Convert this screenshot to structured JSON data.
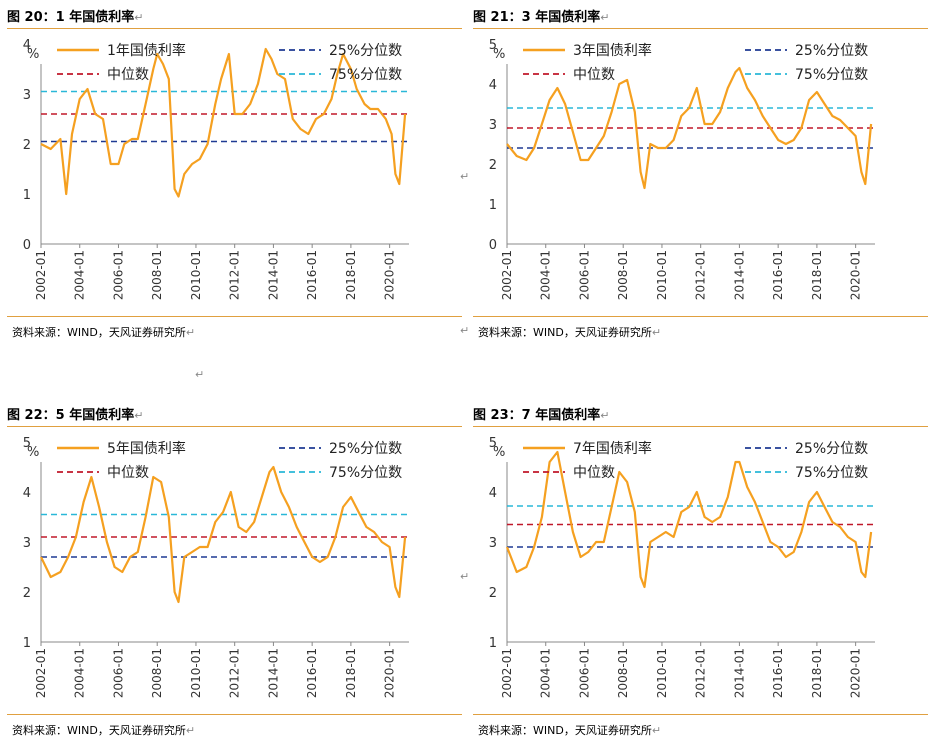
{
  "panels": [
    {
      "title": "图 20：1 年国债利率",
      "source": "资料来源：WIND，天风证券研究所"
    },
    {
      "title": "图 21：3 年国债利率",
      "source": "资料来源：WIND，天风证券研究所"
    },
    {
      "title": "图 22：5 年国债利率",
      "source": "资料来源：WIND，天风证券研究所"
    },
    {
      "title": "图 23：7 年国债利率",
      "source": "资料来源：WIND，天风证券研究所"
    }
  ],
  "colors": {
    "series": "#f5a020",
    "p25": "#1f3a93",
    "median": "#c0182a",
    "p75": "#2ab8d8",
    "rule": "#e0a040"
  },
  "chart_data": [
    {
      "type": "line",
      "ylabel": "%",
      "ylim": [
        0,
        4
      ],
      "yticks": [
        "0",
        "1",
        "2",
        "3",
        "4"
      ],
      "x_tick_labels": [
        "2002-01",
        "2004-01",
        "2006-01",
        "2008-01",
        "2010-01",
        "2012-01",
        "2014-01",
        "2016-01",
        "2018-01",
        "2020-01"
      ],
      "legend": [
        "1年国债利率",
        "25%分位数",
        "中位数",
        "75%分位数"
      ],
      "series": [
        {
          "name": "1年国债利率",
          "x": [
            2002.0,
            2002.5,
            2003.0,
            2003.3,
            2003.6,
            2004.0,
            2004.4,
            2004.8,
            2005.2,
            2005.6,
            2006.0,
            2006.3,
            2006.7,
            2007.0,
            2007.4,
            2007.8,
            2008.0,
            2008.3,
            2008.6,
            2008.9,
            2009.1,
            2009.4,
            2009.8,
            2010.2,
            2010.6,
            2011.0,
            2011.3,
            2011.7,
            2012.0,
            2012.4,
            2012.8,
            2013.2,
            2013.6,
            2013.9,
            2014.2,
            2014.6,
            2015.0,
            2015.4,
            2015.8,
            2016.2,
            2016.6,
            2017.0,
            2017.3,
            2017.6,
            2018.0,
            2018.3,
            2018.7,
            2019.0,
            2019.4,
            2019.8,
            2020.1,
            2020.3,
            2020.5,
            2020.8
          ],
          "y": [
            2.0,
            1.9,
            2.1,
            1.0,
            2.2,
            2.9,
            3.1,
            2.6,
            2.5,
            1.6,
            1.6,
            2.0,
            2.1,
            2.1,
            2.8,
            3.5,
            3.8,
            3.6,
            3.3,
            1.1,
            0.95,
            1.4,
            1.6,
            1.7,
            2.0,
            2.8,
            3.3,
            3.8,
            2.6,
            2.6,
            2.8,
            3.2,
            3.9,
            3.7,
            3.4,
            3.3,
            2.5,
            2.3,
            2.2,
            2.5,
            2.6,
            2.9,
            3.4,
            3.8,
            3.5,
            3.1,
            2.8,
            2.7,
            2.7,
            2.5,
            2.2,
            1.4,
            1.2,
            2.6
          ]
        }
      ],
      "p25": 2.05,
      "median": 2.6,
      "p75": 3.05
    },
    {
      "type": "line",
      "ylabel": "%",
      "ylim": [
        0,
        5
      ],
      "yticks": [
        "0",
        "1",
        "2",
        "3",
        "4",
        "5"
      ],
      "x_tick_labels": [
        "2002-01",
        "2004-01",
        "2006-01",
        "2008-01",
        "2010-01",
        "2012-01",
        "2014-01",
        "2016-01",
        "2018-01",
        "2020-01"
      ],
      "legend": [
        "3年国债利率",
        "25%分位数",
        "中位数",
        "75%分位数"
      ],
      "series": [
        {
          "name": "3年国债利率",
          "x": [
            2002.0,
            2002.5,
            2003.0,
            2003.4,
            2003.8,
            2004.2,
            2004.6,
            2005.0,
            2005.4,
            2005.8,
            2006.2,
            2006.6,
            2007.0,
            2007.4,
            2007.8,
            2008.2,
            2008.6,
            2008.9,
            2009.1,
            2009.4,
            2009.8,
            2010.2,
            2010.6,
            2011.0,
            2011.4,
            2011.8,
            2012.2,
            2012.6,
            2013.0,
            2013.4,
            2013.8,
            2014.0,
            2014.4,
            2014.8,
            2015.2,
            2015.6,
            2016.0,
            2016.4,
            2016.8,
            2017.2,
            2017.6,
            2018.0,
            2018.4,
            2018.8,
            2019.2,
            2019.6,
            2020.0,
            2020.3,
            2020.5,
            2020.8
          ],
          "y": [
            2.5,
            2.2,
            2.1,
            2.4,
            3.0,
            3.6,
            3.9,
            3.5,
            2.8,
            2.1,
            2.1,
            2.4,
            2.7,
            3.3,
            4.0,
            4.1,
            3.3,
            1.8,
            1.4,
            2.5,
            2.4,
            2.4,
            2.6,
            3.2,
            3.4,
            3.9,
            3.0,
            3.0,
            3.3,
            3.9,
            4.3,
            4.4,
            3.9,
            3.6,
            3.2,
            2.9,
            2.6,
            2.5,
            2.6,
            2.9,
            3.6,
            3.8,
            3.5,
            3.2,
            3.1,
            2.9,
            2.7,
            1.8,
            1.5,
            3.0
          ]
        }
      ],
      "p25": 2.4,
      "median": 2.9,
      "p75": 3.4
    },
    {
      "type": "line",
      "ylabel": "%",
      "ylim": [
        1,
        5
      ],
      "yticks": [
        "1",
        "2",
        "3",
        "4",
        "5"
      ],
      "x_tick_labels": [
        "2002-01",
        "2004-01",
        "2006-01",
        "2008-01",
        "2010-01",
        "2012-01",
        "2014-01",
        "2016-01",
        "2018-01",
        "2020-01"
      ],
      "legend": [
        "5年国债利率",
        "25%分位数",
        "中位数",
        "75%分位数"
      ],
      "series": [
        {
          "name": "5年国债利率",
          "x": [
            2002.0,
            2002.5,
            2003.0,
            2003.4,
            2003.8,
            2004.2,
            2004.6,
            2005.0,
            2005.4,
            2005.8,
            2006.2,
            2006.6,
            2007.0,
            2007.4,
            2007.8,
            2008.2,
            2008.6,
            2008.9,
            2009.1,
            2009.4,
            2009.8,
            2010.2,
            2010.6,
            2011.0,
            2011.4,
            2011.8,
            2012.2,
            2012.6,
            2013.0,
            2013.4,
            2013.8,
            2014.0,
            2014.4,
            2014.8,
            2015.2,
            2015.6,
            2016.0,
            2016.4,
            2016.8,
            2017.2,
            2017.6,
            2018.0,
            2018.4,
            2018.8,
            2019.2,
            2019.6,
            2020.0,
            2020.3,
            2020.5,
            2020.8
          ],
          "y": [
            2.7,
            2.3,
            2.4,
            2.7,
            3.1,
            3.8,
            4.3,
            3.7,
            3.0,
            2.5,
            2.4,
            2.7,
            2.8,
            3.5,
            4.3,
            4.2,
            3.5,
            2.0,
            1.8,
            2.7,
            2.8,
            2.9,
            2.9,
            3.4,
            3.6,
            4.0,
            3.3,
            3.2,
            3.4,
            3.9,
            4.4,
            4.5,
            4.0,
            3.7,
            3.3,
            3.0,
            2.7,
            2.6,
            2.7,
            3.1,
            3.7,
            3.9,
            3.6,
            3.3,
            3.2,
            3.0,
            2.9,
            2.1,
            1.9,
            3.1
          ]
        }
      ],
      "p25": 2.7,
      "median": 3.1,
      "p75": 3.55
    },
    {
      "type": "line",
      "ylabel": "%",
      "ylim": [
        1,
        5
      ],
      "yticks": [
        "1",
        "2",
        "3",
        "4",
        "5"
      ],
      "x_tick_labels": [
        "2002-01",
        "2004-01",
        "2006-01",
        "2008-01",
        "2010-01",
        "2012-01",
        "2014-01",
        "2016-01",
        "2018-01",
        "2020-01"
      ],
      "legend": [
        "7年国债利率",
        "25%分位数",
        "中位数",
        "75%分位数"
      ],
      "series": [
        {
          "name": "7年国债利率",
          "x": [
            2002.0,
            2002.5,
            2003.0,
            2003.4,
            2003.8,
            2004.2,
            2004.6,
            2005.0,
            2005.4,
            2005.8,
            2006.2,
            2006.6,
            2007.0,
            2007.4,
            2007.8,
            2008.2,
            2008.6,
            2008.9,
            2009.1,
            2009.4,
            2009.8,
            2010.2,
            2010.6,
            2011.0,
            2011.4,
            2011.8,
            2012.2,
            2012.6,
            2013.0,
            2013.4,
            2013.8,
            2014.0,
            2014.4,
            2014.8,
            2015.2,
            2015.6,
            2016.0,
            2016.4,
            2016.8,
            2017.2,
            2017.6,
            2018.0,
            2018.4,
            2018.8,
            2019.2,
            2019.6,
            2020.0,
            2020.3,
            2020.5,
            2020.8
          ],
          "y": [
            2.9,
            2.4,
            2.5,
            2.9,
            3.5,
            4.6,
            4.8,
            4.0,
            3.2,
            2.7,
            2.8,
            3.0,
            3.0,
            3.7,
            4.4,
            4.2,
            3.6,
            2.3,
            2.1,
            3.0,
            3.1,
            3.2,
            3.1,
            3.6,
            3.7,
            4.0,
            3.5,
            3.4,
            3.5,
            3.9,
            4.6,
            4.6,
            4.1,
            3.8,
            3.4,
            3.0,
            2.9,
            2.7,
            2.8,
            3.2,
            3.8,
            4.0,
            3.7,
            3.4,
            3.3,
            3.1,
            3.0,
            2.4,
            2.3,
            3.2
          ]
        }
      ],
      "p25": 2.9,
      "median": 3.35,
      "p75": 3.72
    }
  ]
}
